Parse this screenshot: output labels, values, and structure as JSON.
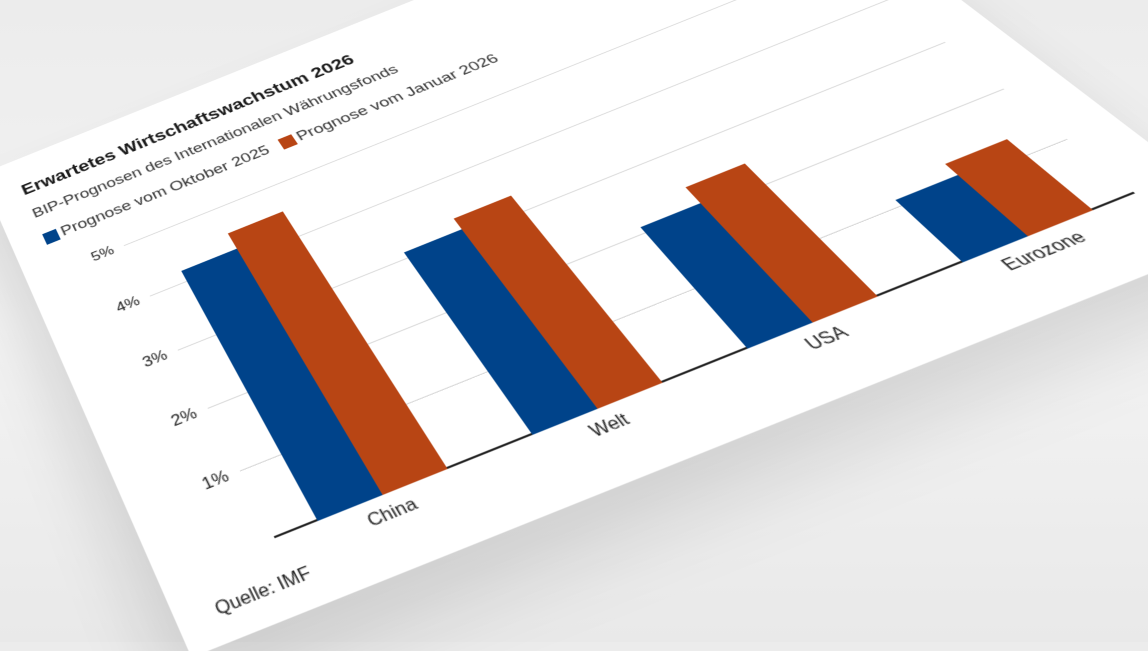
{
  "header": {
    "title": "Erwartetes Wirtschaftswachstum 2026",
    "subtitle": "BIP-Prognosen des Internationalen Währungsfonds"
  },
  "legend": [
    {
      "label": "Prognose vom Oktober 2025",
      "color": "#00438a"
    },
    {
      "label": "Prognose vom Januar 2026",
      "color": "#b84514"
    }
  ],
  "footer": {
    "source": "Quelle: IMF"
  },
  "colors": {
    "series_oct": "#00438a",
    "series_jan": "#b84514",
    "grid": "#d6d6d6",
    "axis": "#222222"
  },
  "chart_data": {
    "type": "bar",
    "title": "Erwartetes Wirtschaftswachstum 2026",
    "subtitle": "BIP-Prognosen des Internationalen Währungsfonds",
    "categories": [
      "China",
      "Welt",
      "USA",
      "Eurozone"
    ],
    "series": [
      {
        "name": "Prognose vom Oktober 2025",
        "color": "#00438a",
        "values": [
          4.2,
          3.1,
          2.1,
          1.1
        ]
      },
      {
        "name": "Prognose vom Januar 2026",
        "color": "#b84514",
        "values": [
          4.5,
          3.3,
          2.4,
          1.3
        ]
      }
    ],
    "xlabel": "",
    "ylabel": "",
    "ylim": [
      0,
      5
    ],
    "yticks": [
      "1%",
      "2%",
      "3%",
      "4%",
      "5%"
    ],
    "grid": true,
    "legend_position": "top-left",
    "source": "Quelle: IMF"
  }
}
